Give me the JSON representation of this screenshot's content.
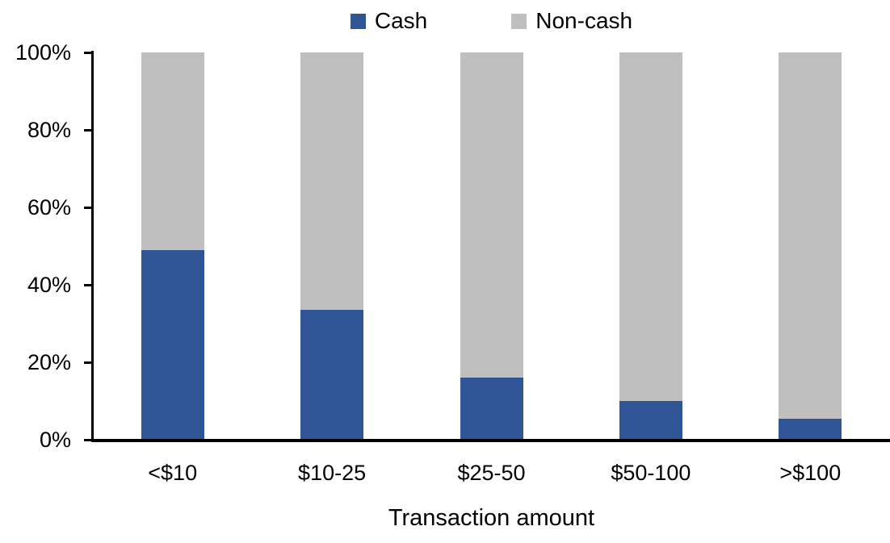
{
  "colors": {
    "cash": "#2F5597",
    "non_cash": "#BFBFBF",
    "axis": "#000000",
    "background": "#FFFFFF"
  },
  "legend": {
    "position": "top",
    "items": [
      {
        "label": "Cash",
        "color": "#2F5597"
      },
      {
        "label": "Non-cash",
        "color": "#BFBFBF"
      }
    ]
  },
  "chart_data": {
    "type": "bar",
    "stacked": true,
    "orientation": "vertical",
    "title": "",
    "xlabel": "Transaction amount",
    "ylabel": "",
    "categories": [
      "<$10",
      "$10-25",
      "$25-50",
      "$50-100",
      ">$100"
    ],
    "series": [
      {
        "name": "Cash",
        "color": "#2F5597",
        "values": [
          49,
          33.5,
          16,
          10,
          5.5
        ]
      },
      {
        "name": "Non-cash",
        "color": "#BFBFBF",
        "values": [
          51,
          66.5,
          84,
          90,
          94.5
        ]
      }
    ],
    "ylim": [
      0,
      100
    ],
    "ytick_labels": [
      "0%",
      "20%",
      "40%",
      "60%",
      "80%",
      "100%"
    ],
    "ytick_values": [
      0,
      20,
      40,
      60,
      80,
      100
    ],
    "grid": false,
    "legend_position": "top"
  }
}
